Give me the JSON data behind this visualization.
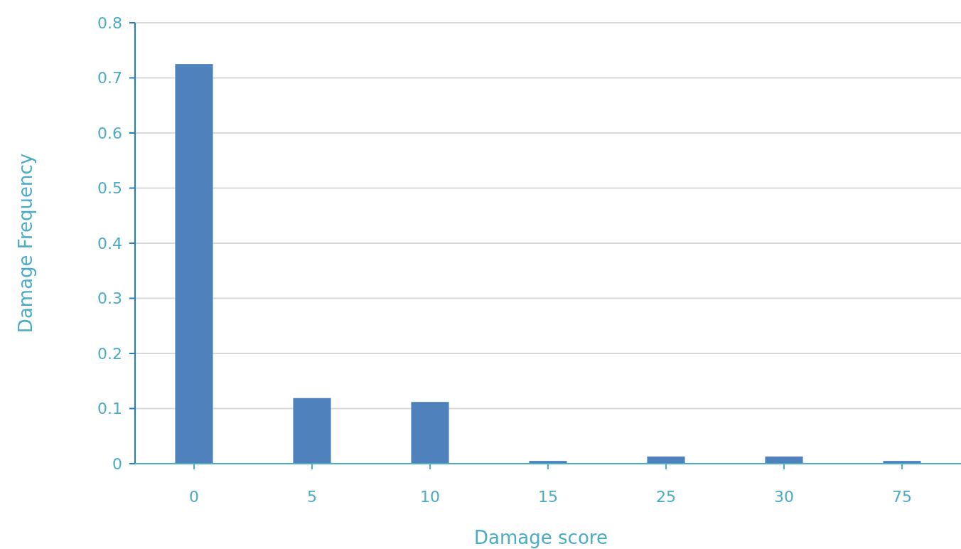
{
  "chart_data": {
    "type": "bar",
    "xlabel": "Damage score",
    "ylabel": "Damage Frequency",
    "categories": [
      "0",
      "5",
      "10",
      "15",
      "25",
      "30",
      "75"
    ],
    "values": [
      0.725,
      0.119,
      0.112,
      0.005,
      0.013,
      0.013,
      0.005
    ],
    "color": "#4f81bd",
    "ylim": [
      0,
      0.8
    ],
    "yticks": [
      0,
      0.1,
      0.2,
      0.3,
      0.4,
      0.5,
      0.6,
      0.7,
      0.8
    ],
    "grid": "y"
  }
}
